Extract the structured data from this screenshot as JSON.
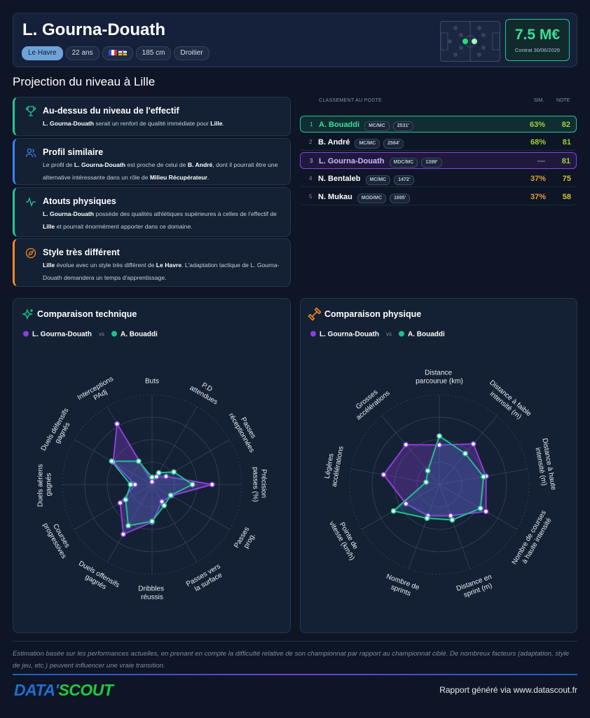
{
  "header": {
    "name": "L. Gourna-Douath",
    "club": "Le Havre",
    "age": "22 ans",
    "height": "185 cm",
    "foot": "Droitier",
    "value": "7.5 M€",
    "contract": "Contrat 30/06/2026"
  },
  "section_title": "Projection du niveau à Lille",
  "insights": [
    {
      "title": "Au-dessus du niveau de l'effectif",
      "accent": "#22c993",
      "text": [
        {
          "text": "L. Gourna-Douath",
          "bold": true
        },
        {
          "text": " serait un renfort de qualité immédiate pour "
        },
        {
          "text": "Lille",
          "bold": true
        },
        {
          "text": "."
        }
      ]
    },
    {
      "title": "Profil similaire",
      "accent": "#3b82f6",
      "text": [
        {
          "text": "Le profil de "
        },
        {
          "text": "L. Gourna-Douath",
          "bold": true
        },
        {
          "text": " est proche de celui de "
        },
        {
          "text": "B. André",
          "bold": true
        },
        {
          "text": ", dont il pourrait être une alternative intéressante dans un rôle de "
        },
        {
          "text": "Milieu Récupérateur",
          "bold": true
        },
        {
          "text": "."
        }
      ]
    },
    {
      "title": "Atouts physiques",
      "accent": "#22c993",
      "text": [
        {
          "text": "L. Gourna-Douath",
          "bold": true
        },
        {
          "text": " possède des qualités athlétiques supérieures à celles de l'effectif de "
        },
        {
          "text": "Lille",
          "bold": true
        },
        {
          "text": " et pourrait énormément apporter dans ce domaine."
        }
      ]
    },
    {
      "title": "Style très différent",
      "accent": "#f08a24",
      "text": [
        {
          "text": "Lille",
          "bold": true
        },
        {
          "text": " évolue avec un style très différent de "
        },
        {
          "text": "Le Havre",
          "bold": true
        },
        {
          "text": ". L'adaptation tactique de L. Gourna-Douath demandera un temps d'apprentissage."
        }
      ]
    }
  ],
  "ranking": {
    "title": "CLASSEMENT AU POSTE",
    "sim_header": "SIM.",
    "note_header": "NOTE",
    "rows": [
      {
        "rank": 1,
        "name": "A. Bouaddi",
        "position": "MC/MC",
        "elo": "2531'",
        "sim": "63%",
        "note": 82,
        "highlight": "#22c993",
        "name_color": "#3ddc97",
        "sim_color": "#9bd13b",
        "note_color": "#9bd13b"
      },
      {
        "rank": 2,
        "name": "B. André",
        "position": "MC/MC",
        "elo": "2564'",
        "sim": "68%",
        "note": 81,
        "sim_color": "#9bd13b",
        "note_color": "#9bd13b"
      },
      {
        "rank": 3,
        "name": "L. Gourna-Douath",
        "position": "MDC/MC",
        "elo": "1399'",
        "sim": "—",
        "note": 81,
        "highlight": "#8b3fd9",
        "name_color": "#d2b4ff",
        "sim_color": "#7c879a",
        "note_color": "#9bd13b"
      },
      {
        "rank": 4,
        "name": "N. Bentaleb",
        "position": "MC/MC",
        "elo": "1472'",
        "sim": "37%",
        "note": 75,
        "sim_color": "#e0a030",
        "note_color": "#d9c23a"
      },
      {
        "rank": 5,
        "name": "N. Mukau",
        "position": "MOD/MC",
        "elo": "1695'",
        "sim": "37%",
        "note": 58,
        "sim_color": "#e0a030",
        "note_color": "#d9c23a"
      }
    ]
  },
  "chart_data": [
    {
      "type": "radar",
      "title": "Comparaison technique",
      "legend_separator": "vs",
      "rlim": [
        0,
        100
      ],
      "rings": 4,
      "categories": [
        "Buts",
        "P.D attendues",
        "Passes réceptionnées",
        "Précision passes (%)",
        "Passes prog.",
        "Passes vers la surface",
        "Dribbles réussis",
        "Duels offensifs gagnés",
        "Courses progressives",
        "Duels aériens gagnés",
        "Duels défensifs gagnés",
        "Interceptions PAdj"
      ],
      "series": [
        {
          "name": "L. Gourna-Douath",
          "color": "#8b3fd9",
          "values": [
            3,
            10,
            18,
            67,
            25,
            22,
            42,
            64,
            41,
            19,
            50,
            78
          ]
        },
        {
          "name": "A. Bouaddi",
          "color": "#1fbf8f",
          "values": [
            8,
            15,
            28,
            45,
            24,
            27,
            41,
            53,
            34,
            24,
            52,
            30
          ]
        }
      ]
    },
    {
      "type": "radar",
      "title": "Comparaison physique",
      "legend_separator": "vs",
      "rlim": [
        0,
        100
      ],
      "rings": 4,
      "categories": [
        "Distance parcourue (km)",
        "Distance à faible intensité (m)",
        "Distance à haute intensité (m)",
        "Nombre de courses à haute intensité",
        "Distance en sprint (m)",
        "Nombre de sprints",
        "Pointe de vitesse (km/h)",
        "Légères accélérations",
        "Grosses accélérations"
      ],
      "series": [
        {
          "name": "L. Gourna-Douath",
          "color": "#8b3fd9",
          "values": [
            44,
            59,
            53,
            60,
            37,
            37,
            43,
            63,
            58
          ]
        },
        {
          "name": "A. Bouaddi",
          "color": "#1fbf8f",
          "values": [
            54,
            45,
            50,
            53,
            42,
            40,
            59,
            15,
            20
          ]
        }
      ]
    }
  ],
  "footer": {
    "disclaimer": "Estimation basée sur les performances actuelles, en prenant en compte la difficulté relative de son championnat par rapport au championnat ciblé. De nombreux facteurs (adaptation, style de jeu, etc.) peuvent influencer une vraie transition.",
    "logo": [
      "DATA'",
      "SCOUT"
    ],
    "report": "Rapport généré via www.datascout.fr"
  }
}
